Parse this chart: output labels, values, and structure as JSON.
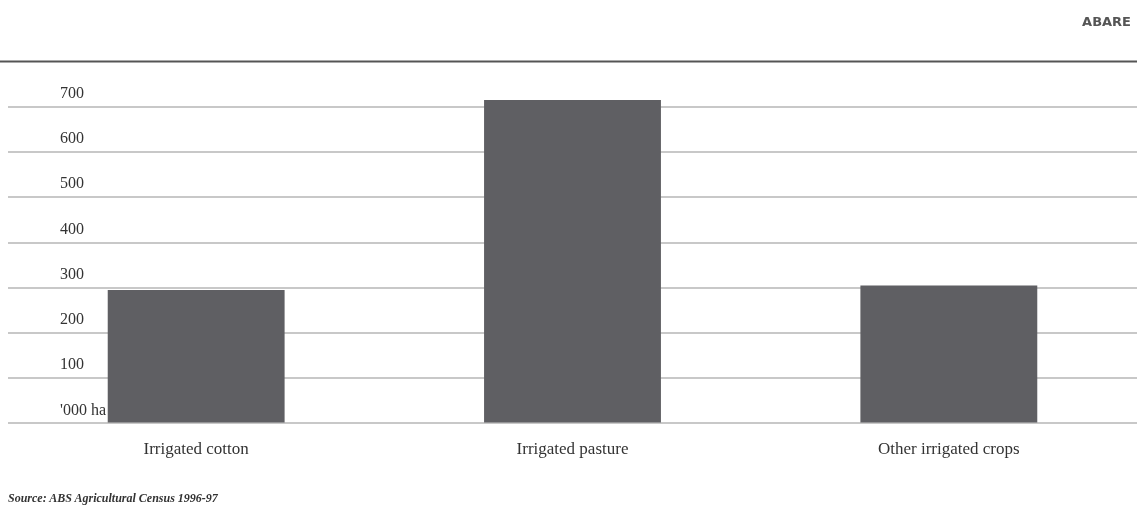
{
  "chart_data": {
    "type": "bar",
    "categories": [
      "Irrigated cotton",
      "Irrigated pasture",
      "Other irrigated crops"
    ],
    "values": [
      295,
      715,
      305
    ],
    "color": "#5f5f63",
    "ylim": [
      0,
      800
    ],
    "yticks": [
      {
        "value": 0,
        "label": "'000 ha"
      },
      100,
      200,
      300,
      400,
      500,
      600,
      700
    ],
    "grid": "y",
    "legend": false,
    "annotations": [
      "ABARE",
      "Source: ABS Agricultural Census 1996-97"
    ]
  }
}
